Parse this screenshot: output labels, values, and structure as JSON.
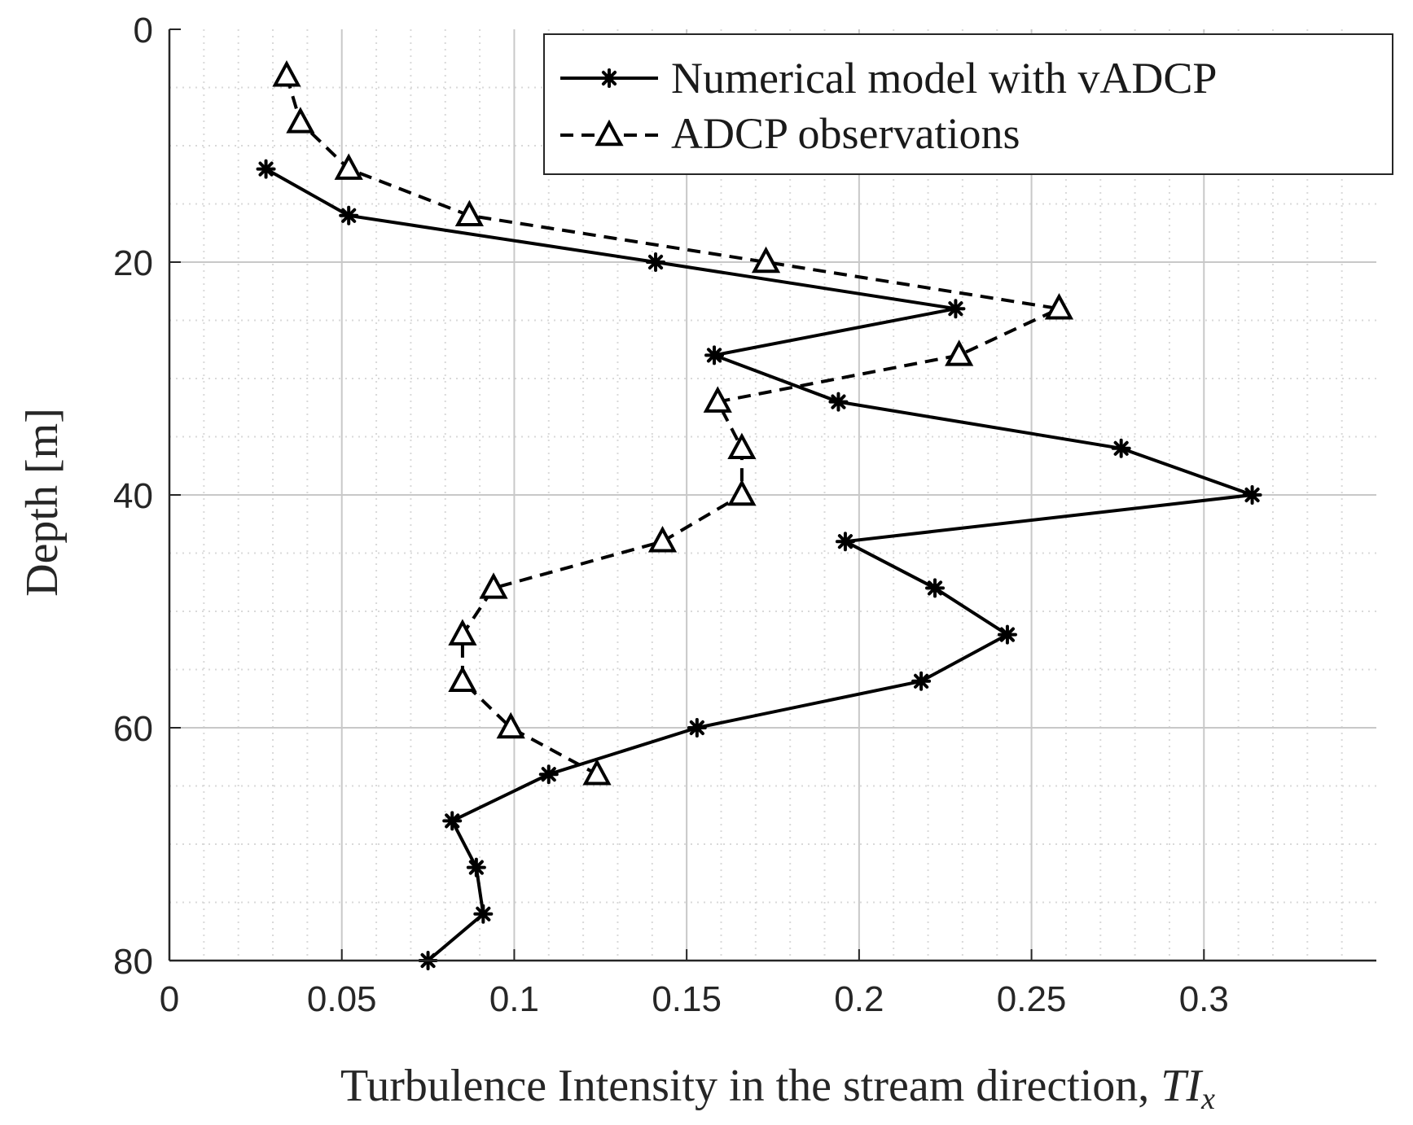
{
  "chart_data": {
    "type": "line",
    "title": "",
    "xlabel": "Turbulence Intensity in the stream direction, ",
    "xlabel_math": "TI",
    "xlabel_sub": "x",
    "ylabel": "Depth [m]",
    "xlim": [
      0,
      0.35
    ],
    "ylim": [
      0,
      80
    ],
    "y_reversed": true,
    "x_ticks": [
      0,
      0.05,
      0.1,
      0.15,
      0.2,
      0.25,
      0.3
    ],
    "x_tick_labels": [
      "0",
      "0.05",
      "0.1",
      "0.15",
      "0.2",
      "0.25",
      "0.3"
    ],
    "x_minor_step": 0.01,
    "y_ticks": [
      0,
      20,
      40,
      60,
      80
    ],
    "y_tick_labels": [
      "0",
      "20",
      "40",
      "60",
      "80"
    ],
    "y_minor_step": 5,
    "grid": true,
    "legend_position": "top-right",
    "series": [
      {
        "name": "Numerical model with vADCP",
        "style": "solid",
        "marker": "asterisk",
        "x": [
          0.028,
          0.052,
          0.141,
          0.228,
          0.158,
          0.194,
          0.276,
          0.314,
          0.196,
          0.222,
          0.243,
          0.218,
          0.153,
          0.11,
          0.082,
          0.089,
          0.091,
          0.075
        ],
        "y": [
          12,
          16,
          20,
          24,
          28,
          32,
          36,
          40,
          44,
          48,
          52,
          56,
          60,
          64,
          68,
          72,
          76,
          80
        ]
      },
      {
        "name": "ADCP observations",
        "style": "dashed",
        "marker": "triangle",
        "x": [
          0.034,
          0.038,
          0.052,
          0.087,
          0.173,
          0.258,
          0.229,
          0.159,
          0.166,
          0.166,
          0.143,
          0.094,
          0.085,
          0.085,
          0.099,
          0.124
        ],
        "y": [
          4,
          8,
          12,
          16,
          20,
          24,
          28,
          32,
          36,
          40,
          44,
          48,
          52,
          56,
          60,
          64
        ]
      }
    ]
  }
}
